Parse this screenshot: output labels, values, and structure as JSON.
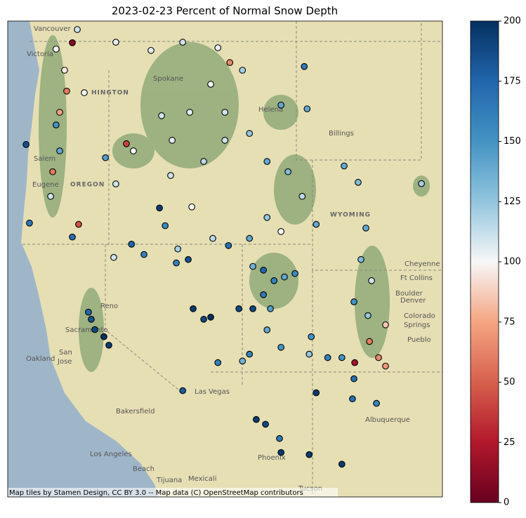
{
  "chart_data": {
    "type": "scatter",
    "title": "2023-02-23 Percent of Normal Snow Depth",
    "xlim": [
      -125,
      -102
    ],
    "ylim": [
      31.5,
      49.5
    ],
    "clim": [
      0,
      200
    ],
    "cticks": [
      0,
      25,
      50,
      75,
      100,
      125,
      150,
      175,
      200
    ],
    "colormap": [
      "#67001f",
      "#b2182b",
      "#d6604d",
      "#f4a582",
      "#f7f7f7",
      "#92c5de",
      "#4393c3",
      "#2166ac",
      "#053061"
    ],
    "x": [
      -122.44,
      -121.58,
      -121.99,
      -121.88,
      -122.25,
      -122.44,
      -122.25,
      -122.62,
      -122.73,
      -121.25,
      -121.58,
      -123.85,
      -124.03,
      -120.73,
      -120.39,
      -119.91,
      -119.65,
      -120.58,
      -118.72,
      -118.35,
      -119.83,
      -119.28,
      -120.95,
      -119.28,
      -117.42,
      -115.74,
      -113.88,
      -113.25,
      -112.58,
      -114.26,
      -115.37,
      -116.3,
      -114.63,
      -113.51,
      -112.21,
      -110.54,
      -109.16,
      -109.31,
      -111.28,
      -110.17,
      -109.42,
      -108.68,
      -107.2,
      -106.46,
      -103.11,
      -106.05,
      -106.31,
      -105.75,
      -106.68,
      -105.94,
      -105.01,
      -105.86,
      -106.64,
      -105.38,
      -105.01,
      -107.32,
      -108.07,
      -106.76,
      -105.49,
      -111.47,
      -110.91,
      -110.36,
      -109.8,
      -111.47,
      -111.1,
      -112.03,
      -111.28,
      -110.54,
      -112.21,
      -112.58,
      -113.88,
      -108.94,
      -109.05,
      -111.85,
      -111.36,
      -110.62,
      -110.54,
      -109.05,
      -107.32,
      -108.68,
      -115.74,
      -115.19,
      -114.63,
      -114.26,
      -116.08,
      -115.45,
      -116.0,
      -116.97,
      -116.67,
      -118.45,
      -117.79,
      -119.39,
      -112.21,
      -111.28,
      -110.54,
      -113.32,
      -114.15,
      -115.26,
      -116.38,
      -116.86,
      -121.32,
      -113.51,
      -106.68,
      -112.77,
      -112.03
    ],
    "y": [
      48.44,
      48.68,
      47.64,
      46.85,
      46.05,
      45.57,
      44.59,
      43.8,
      42.87,
      41.81,
      41.33,
      41.86,
      44.83,
      38.49,
      37.83,
      37.56,
      37.24,
      38.22,
      44.86,
      44.59,
      44.33,
      43.34,
      46.79,
      48.7,
      48.39,
      48.7,
      48.49,
      47.93,
      47.64,
      47.11,
      46.05,
      44.99,
      44.19,
      44.99,
      45.25,
      46.32,
      46.18,
      47.78,
      44.19,
      43.8,
      42.87,
      41.81,
      44.02,
      43.4,
      43.35,
      41.67,
      40.48,
      39.68,
      38.88,
      38.36,
      38.01,
      37.38,
      36.58,
      36.77,
      36.45,
      36.77,
      36.77,
      35.21,
      35.04,
      40.08,
      39.68,
      39.82,
      39.95,
      39.15,
      38.62,
      38.62,
      37.82,
      37.16,
      36.9,
      36.64,
      36.58,
      37.56,
      36.9,
      34.43,
      34.25,
      33.71,
      33.18,
      33.1,
      32.74,
      35.44,
      35.52,
      38.62,
      38.22,
      38.3,
      40.35,
      40.48,
      40.88,
      42.43,
      41.76,
      41.06,
      40.67,
      40.56,
      41.28,
      42.07,
      41.54,
      41.01,
      41.28,
      42.47,
      43.66,
      45.92,
      49.18,
      46.05,
      35.97,
      38.62,
      40.22
    ],
    "values": [
      100,
      10,
      95,
      60,
      75,
      150,
      140,
      60,
      110,
      45,
      170,
      165,
      185,
      175,
      190,
      200,
      195,
      185,
      40,
      100,
      145,
      110,
      100,
      105,
      105,
      110,
      105,
      65,
      120,
      100,
      105,
      105,
      115,
      110,
      125,
      140,
      140,
      165,
      140,
      130,
      115,
      140,
      140,
      130,
      120,
      140,
      130,
      110,
      150,
      125,
      85,
      60,
      20,
      65,
      70,
      150,
      160,
      170,
      160,
      175,
      160,
      140,
      155,
      165,
      145,
      190,
      140,
      150,
      160,
      135,
      160,
      150,
      125,
      195,
      190,
      165,
      195,
      195,
      195,
      195,
      180,
      195,
      190,
      200,
      160,
      185,
      120,
      195,
      155,
      175,
      160,
      110,
      140,
      125,
      100,
      170,
      115,
      100,
      110,
      110,
      110,
      110,
      170,
      190,
      135
    ]
  },
  "map_labels": [
    "Vancouver",
    "Victoria",
    "Spokane",
    "HINGTON",
    "Salem",
    "OREGON",
    "Eugene",
    "Helena",
    "Billings",
    "WYOMING",
    "Reno",
    "Sacramento",
    "Oakland",
    "San",
    "Jose",
    "Las Vegas",
    "Bakersfield",
    "Los Angeles",
    "Beach",
    "Phoenix",
    "Tucson",
    "Mexicali",
    "Tijuana",
    "Albuquerque",
    "Cheyenne",
    "Ft Collins",
    "Boulder",
    "Denver",
    "Colorado",
    "Springs",
    "Pueblo"
  ],
  "attribution": "Map tiles by Stamen Design, CC BY 3.0 -- Map data (C) OpenStreetMap contributors"
}
